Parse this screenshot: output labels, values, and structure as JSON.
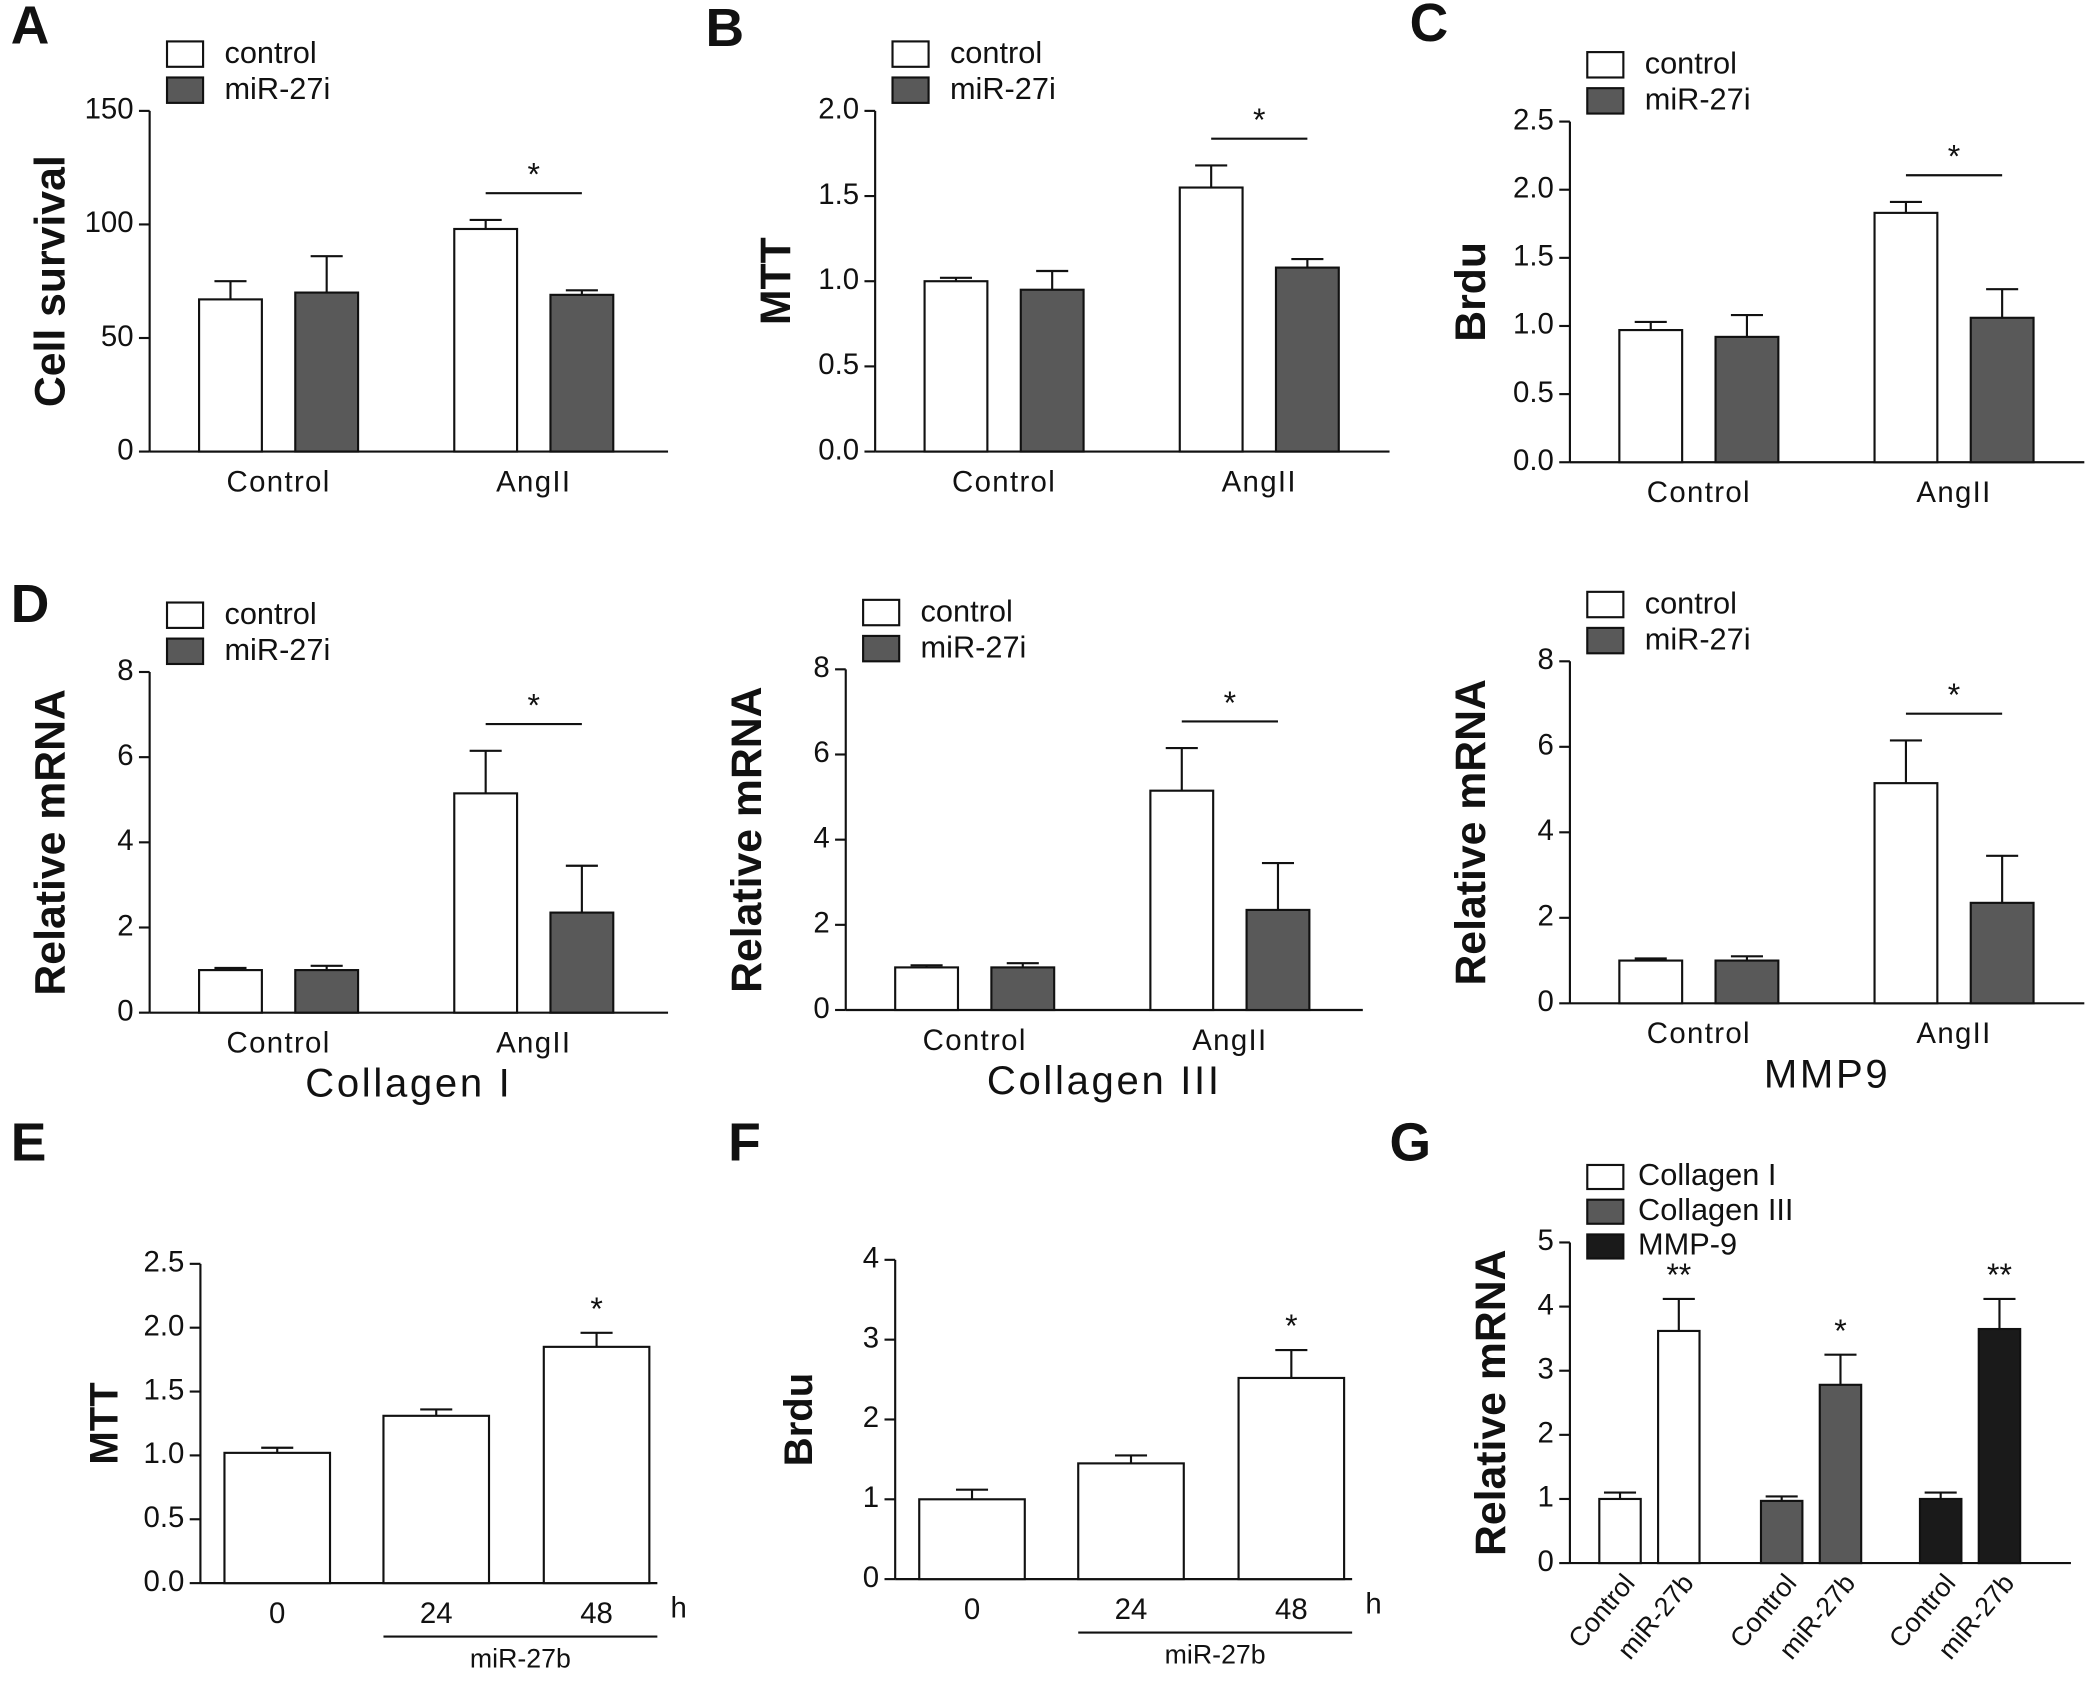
{
  "chart_data": [
    {
      "type": "bar",
      "panel": "A",
      "ylabel": "Cell survival",
      "categories": [
        "Control",
        "AngII"
      ],
      "series": [
        {
          "name": "control",
          "color": "#ffffff",
          "values": [
            67,
            98
          ],
          "errors": [
            8,
            4
          ]
        },
        {
          "name": "miR-27i",
          "color": "#595959",
          "values": [
            70,
            69
          ],
          "errors": [
            16,
            2
          ]
        }
      ],
      "ylim": [
        0,
        150
      ],
      "yticks": [
        0,
        50,
        100,
        150
      ],
      "annotations": [
        "*"
      ]
    },
    {
      "type": "bar",
      "panel": "B",
      "ylabel": "MTT",
      "categories": [
        "Control",
        "AngII"
      ],
      "series": [
        {
          "name": "control",
          "color": "#ffffff",
          "values": [
            1.0,
            1.55
          ],
          "errors": [
            0.02,
            0.13
          ]
        },
        {
          "name": "miR-27i",
          "color": "#595959",
          "values": [
            0.95,
            1.08
          ],
          "errors": [
            0.11,
            0.05
          ]
        }
      ],
      "ylim": [
        0,
        2
      ],
      "yticks": [
        {
          "value": 0,
          "label": "0.0"
        },
        {
          "value": 0.5,
          "label": "0.5"
        },
        {
          "value": 1,
          "label": "1.0"
        },
        {
          "value": 1.5,
          "label": "1.5"
        },
        {
          "value": 2,
          "label": "2.0"
        }
      ],
      "annotations": [
        "*"
      ]
    },
    {
      "type": "bar",
      "panel": "C",
      "ylabel": "Brdu",
      "categories": [
        "Control",
        "AngII"
      ],
      "series": [
        {
          "name": "control",
          "color": "#ffffff",
          "values": [
            0.97,
            1.83
          ],
          "errors": [
            0.06,
            0.08
          ]
        },
        {
          "name": "miR-27i",
          "color": "#595959",
          "values": [
            0.92,
            1.06
          ],
          "errors": [
            0.16,
            0.21
          ]
        }
      ],
      "ylim": [
        0,
        2.5
      ],
      "yticks": [
        {
          "value": 0,
          "label": "0.0"
        },
        {
          "value": 0.5,
          "label": "0.5"
        },
        {
          "value": 1,
          "label": "1.0"
        },
        {
          "value": 1.5,
          "label": "1.5"
        },
        {
          "value": 2,
          "label": "2.0"
        },
        {
          "value": 2.5,
          "label": "2.5"
        }
      ],
      "annotations": [
        "*"
      ]
    },
    {
      "type": "bar",
      "panel": "D",
      "ylabel": "Relative mRNA",
      "xlabel": "Collagen I",
      "categories": [
        "Control",
        "AngII"
      ],
      "series": [
        {
          "name": "control",
          "color": "#ffffff",
          "values": [
            1.0,
            5.15
          ],
          "errors": [
            0.05,
            1.0
          ]
        },
        {
          "name": "miR-27i",
          "color": "#595959",
          "values": [
            1.0,
            2.35
          ],
          "errors": [
            0.1,
            1.1
          ]
        }
      ],
      "ylim": [
        0,
        8
      ],
      "yticks": [
        0,
        2,
        4,
        6,
        8
      ],
      "annotations": [
        "*"
      ]
    },
    {
      "type": "bar",
      "ylabel": "Relative mRNA",
      "xlabel": "Collagen III",
      "categories": [
        "Control",
        "AngII"
      ],
      "series": [
        {
          "name": "control",
          "color": "#ffffff",
          "values": [
            1.0,
            5.15
          ],
          "errors": [
            0.05,
            1.0
          ]
        },
        {
          "name": "miR-27i",
          "color": "#595959",
          "values": [
            1.0,
            2.35
          ],
          "errors": [
            0.1,
            1.1
          ]
        }
      ],
      "ylim": [
        0,
        8
      ],
      "yticks": [
        0,
        2,
        4,
        6,
        8
      ],
      "annotations": [
        "*"
      ]
    },
    {
      "type": "bar",
      "ylabel": "Relative mRNA",
      "xlabel": "MMP9",
      "categories": [
        "Control",
        "AngII"
      ],
      "series": [
        {
          "name": "control",
          "color": "#ffffff",
          "values": [
            1.0,
            5.15
          ],
          "errors": [
            0.05,
            1.0
          ]
        },
        {
          "name": "miR-27i",
          "color": "#595959",
          "values": [
            1.0,
            2.35
          ],
          "errors": [
            0.1,
            1.1
          ]
        }
      ],
      "ylim": [
        0,
        8
      ],
      "yticks": [
        0,
        2,
        4,
        6,
        8
      ],
      "annotations": [
        "*"
      ]
    },
    {
      "type": "bar",
      "panel": "E",
      "ylabel": "MTT",
      "xlabel": "h",
      "group_label": "miR-27b",
      "categories": [
        "0",
        "24",
        "48"
      ],
      "series": [
        {
          "color": "#ffffff",
          "values": [
            1.02,
            1.31,
            1.85
          ],
          "errors": [
            0.04,
            0.05,
            0.11
          ]
        }
      ],
      "ylim": [
        0,
        2.5
      ],
      "yticks": [
        {
          "value": 0,
          "label": "0.0"
        },
        {
          "value": 0.5,
          "label": "0.5"
        },
        {
          "value": 1,
          "label": "1.0"
        },
        {
          "value": 1.5,
          "label": "1.5"
        },
        {
          "value": 2,
          "label": "2.0"
        },
        {
          "value": 2.5,
          "label": "2.5"
        }
      ],
      "annotations": [
        "*"
      ]
    },
    {
      "type": "bar",
      "panel": "F",
      "ylabel": "Brdu",
      "xlabel": "h",
      "group_label": "miR-27b",
      "categories": [
        "0",
        "24",
        "48"
      ],
      "series": [
        {
          "color": "#ffffff",
          "values": [
            1.0,
            1.45,
            2.52
          ],
          "errors": [
            0.12,
            0.1,
            0.35
          ]
        }
      ],
      "ylim": [
        0,
        4
      ],
      "yticks": [
        0,
        1,
        2,
        3,
        4
      ],
      "annotations": [
        "*"
      ]
    },
    {
      "type": "bar",
      "panel": "G",
      "ylabel": "Relative mRNA",
      "categories": [
        "Control",
        "miR-27b"
      ],
      "series": [
        {
          "name": "Collagen I",
          "color": "#ffffff",
          "values": [
            1.0,
            3.62
          ],
          "errors": [
            0.1,
            0.5
          ]
        },
        {
          "name": "Collagen III",
          "color": "#595959",
          "values": [
            0.97,
            2.78
          ],
          "errors": [
            0.07,
            0.47
          ]
        },
        {
          "name": "MMP-9",
          "color": "#1a1a1a",
          "values": [
            1.0,
            3.65
          ],
          "errors": [
            0.1,
            0.47
          ]
        }
      ],
      "ylim": [
        0,
        5
      ],
      "yticks": [
        0,
        1,
        2,
        3,
        4,
        5
      ],
      "annotations": [
        "**",
        "*",
        "**"
      ]
    }
  ]
}
